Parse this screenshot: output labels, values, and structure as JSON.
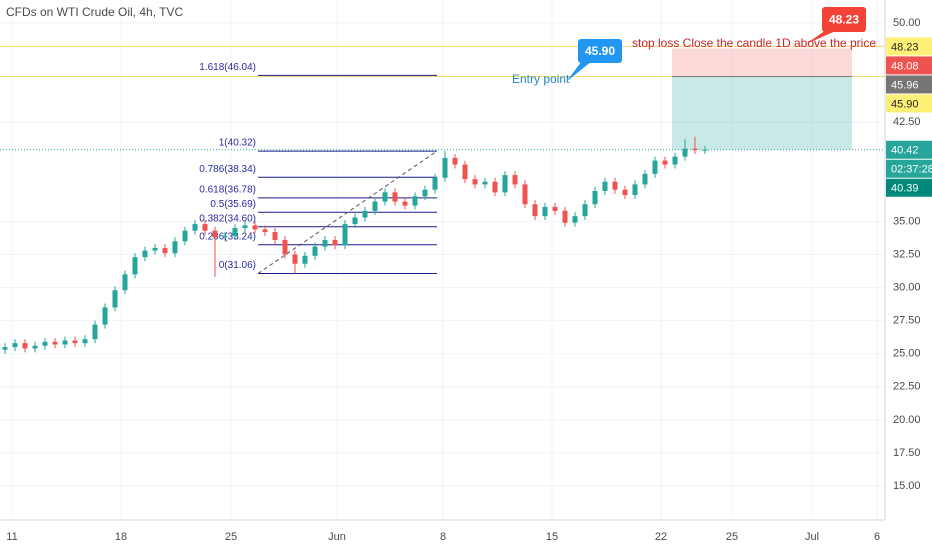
{
  "chart_data": {
    "type": "candlestick",
    "title": "CFDs on WTI Crude Oil, 4h, TVC",
    "up_color": "#26a69a",
    "down_color": "#ef5350",
    "open": [
      25.3,
      25.5,
      25.8,
      25.4,
      25.6,
      25.9,
      25.7,
      26.0,
      25.8,
      26.1,
      27.2,
      28.5,
      29.8,
      31.0,
      32.3,
      32.8,
      33.0,
      32.6,
      33.5,
      34.3,
      34.8,
      34.3,
      33.8,
      33.9,
      34.5,
      34.7,
      34.4,
      34.2,
      33.6,
      32.5,
      31.8,
      32.4,
      33.1,
      33.6,
      33.2,
      34.8,
      35.3,
      35.8,
      36.5,
      37.2,
      36.5,
      36.2,
      36.9,
      37.4,
      38.3,
      39.8,
      39.3,
      38.2,
      37.8,
      38.0,
      37.2,
      38.5,
      37.8,
      36.3,
      35.4,
      36.1,
      35.8,
      34.9,
      35.4,
      36.3,
      37.3,
      38.0,
      37.4,
      37.0,
      37.8,
      38.6,
      39.6,
      39.3,
      39.9,
      40.5,
      40.4
    ],
    "high": [
      25.8,
      26.1,
      26.1,
      25.9,
      26.2,
      26.2,
      26.3,
      26.3,
      26.4,
      27.5,
      28.8,
      30.1,
      31.3,
      32.6,
      33.1,
      33.3,
      33.3,
      33.8,
      34.6,
      35.1,
      35.1,
      34.6,
      34.2,
      34.8,
      35.0,
      35.0,
      34.7,
      34.5,
      33.9,
      32.8,
      32.7,
      33.4,
      33.9,
      33.9,
      35.1,
      35.6,
      36.1,
      36.8,
      37.5,
      37.5,
      36.8,
      37.2,
      37.7,
      38.6,
      40.32,
      40.1,
      39.6,
      38.5,
      38.3,
      38.3,
      38.8,
      38.8,
      38.1,
      36.6,
      36.4,
      36.4,
      36.1,
      35.7,
      36.6,
      37.6,
      38.3,
      38.3,
      37.7,
      38.1,
      38.9,
      39.9,
      39.9,
      40.2,
      41.2,
      41.4,
      40.7
    ],
    "low": [
      25.0,
      25.2,
      25.1,
      25.1,
      25.3,
      25.4,
      25.4,
      25.5,
      25.5,
      25.8,
      26.9,
      28.2,
      29.5,
      30.7,
      32.0,
      32.5,
      32.3,
      32.3,
      33.2,
      34.0,
      34.0,
      30.8,
      33.5,
      33.6,
      34.2,
      34.1,
      33.9,
      33.3,
      32.2,
      31.06,
      31.5,
      32.1,
      32.8,
      32.9,
      32.9,
      34.5,
      35.0,
      35.5,
      36.2,
      36.2,
      35.9,
      35.9,
      36.6,
      37.1,
      38.0,
      39.0,
      37.9,
      37.5,
      37.5,
      36.9,
      36.9,
      37.5,
      36.0,
      35.1,
      35.1,
      35.5,
      34.6,
      34.6,
      35.1,
      36.0,
      37.0,
      37.1,
      36.7,
      36.7,
      37.5,
      38.3,
      39.0,
      39.0,
      39.6,
      40.1,
      40.1
    ],
    "close": [
      25.5,
      25.8,
      25.4,
      25.6,
      25.9,
      25.7,
      26.0,
      25.8,
      26.1,
      27.2,
      28.5,
      29.8,
      31.0,
      32.3,
      32.8,
      33.0,
      32.6,
      33.5,
      34.3,
      34.8,
      34.3,
      33.8,
      33.9,
      34.5,
      34.7,
      34.4,
      34.2,
      33.6,
      32.5,
      31.8,
      32.4,
      33.1,
      33.6,
      33.2,
      34.8,
      35.3,
      35.8,
      36.5,
      37.2,
      36.5,
      36.2,
      36.9,
      37.4,
      38.3,
      39.8,
      39.3,
      38.2,
      37.8,
      38.0,
      37.2,
      38.5,
      37.8,
      36.3,
      35.4,
      36.1,
      35.8,
      34.9,
      35.4,
      36.3,
      37.3,
      38.0,
      37.4,
      37.0,
      37.8,
      38.6,
      39.6,
      39.3,
      39.9,
      40.5,
      40.4,
      40.42
    ],
    "xlim": [
      -0.5,
      88
    ],
    "xticks": [
      {
        "value": 0.7,
        "label": "11"
      },
      {
        "value": 11.6,
        "label": "18"
      },
      {
        "value": 22.6,
        "label": "25"
      },
      {
        "value": 33.2,
        "label": "Jun"
      },
      {
        "value": 43.8,
        "label": "8"
      },
      {
        "value": 54.7,
        "label": "15"
      },
      {
        "value": 65.6,
        "label": "22"
      },
      {
        "value": 72.7,
        "label": "25"
      },
      {
        "value": 80.7,
        "label": "Jul"
      },
      {
        "value": 87.2,
        "label": "6"
      }
    ],
    "ylim": [
      12.43,
      51.74
    ],
    "yticks": [
      {
        "value": 50,
        "label": "50.00"
      },
      {
        "value": 42.5,
        "label": "42.50"
      },
      {
        "value": 35,
        "label": "35.00"
      },
      {
        "value": 32.5,
        "label": "32.50"
      },
      {
        "value": 30,
        "label": "30.00"
      },
      {
        "value": 27.5,
        "label": "27.50"
      },
      {
        "value": 25,
        "label": "25.00"
      },
      {
        "value": 22.5,
        "label": "22.50"
      },
      {
        "value": 20,
        "label": "20.00"
      },
      {
        "value": 17.5,
        "label": "17.50"
      },
      {
        "value": 15,
        "label": "15.00"
      }
    ],
    "grid": true,
    "hlines": [
      48.23,
      45.96
    ],
    "last_price": 40.42,
    "position": {
      "stop": 48.08,
      "entry": 45.96,
      "target": 40.42
    },
    "fib_levels": [
      {
        "value": 46.04,
        "label": "1.618(46.04)"
      },
      {
        "value": 40.32,
        "label": "1(40.32)"
      },
      {
        "value": 38.34,
        "label": "0.786(38.34)"
      },
      {
        "value": 36.78,
        "label": "0.618(36.78)"
      },
      {
        "value": 35.69,
        "label": "0.5(35.69)"
      },
      {
        "value": 34.6,
        "label": "0.382(34.60)"
      },
      {
        "value": 33.24,
        "label": "0.236(33.24)"
      },
      {
        "value": 31.06,
        "label": "0(31.06)"
      }
    ],
    "entry_callout": {
      "value": 45.9,
      "label": "45.90"
    },
    "entry_text": "Entry point",
    "stop_callout": {
      "value": 48.23,
      "label": "48.23"
    },
    "stop_text": "stop loss Close the candle 1D above the price",
    "price_badges": [
      {
        "value": 48.23,
        "label": "48.23",
        "bg": "#fff176",
        "fg": "#222"
      },
      {
        "value": 48.08,
        "label": "48.08",
        "bg": "#ef5350",
        "fg": "#fff"
      },
      {
        "value": 45.96,
        "label": "45.96",
        "bg": "#757575",
        "fg": "#fff"
      },
      {
        "value": 45.9,
        "label": "45.90",
        "bg": "#fff176",
        "fg": "#222"
      },
      {
        "value": 40.42,
        "label": "40.42",
        "bg": "#26a69a",
        "fg": "#fff"
      },
      {
        "label": "02:37:28",
        "bg": "#26a69a",
        "fg": "#fff"
      },
      {
        "value": 40.39,
        "label": "40.39",
        "bg": "#00897b",
        "fg": "#fff"
      }
    ]
  }
}
